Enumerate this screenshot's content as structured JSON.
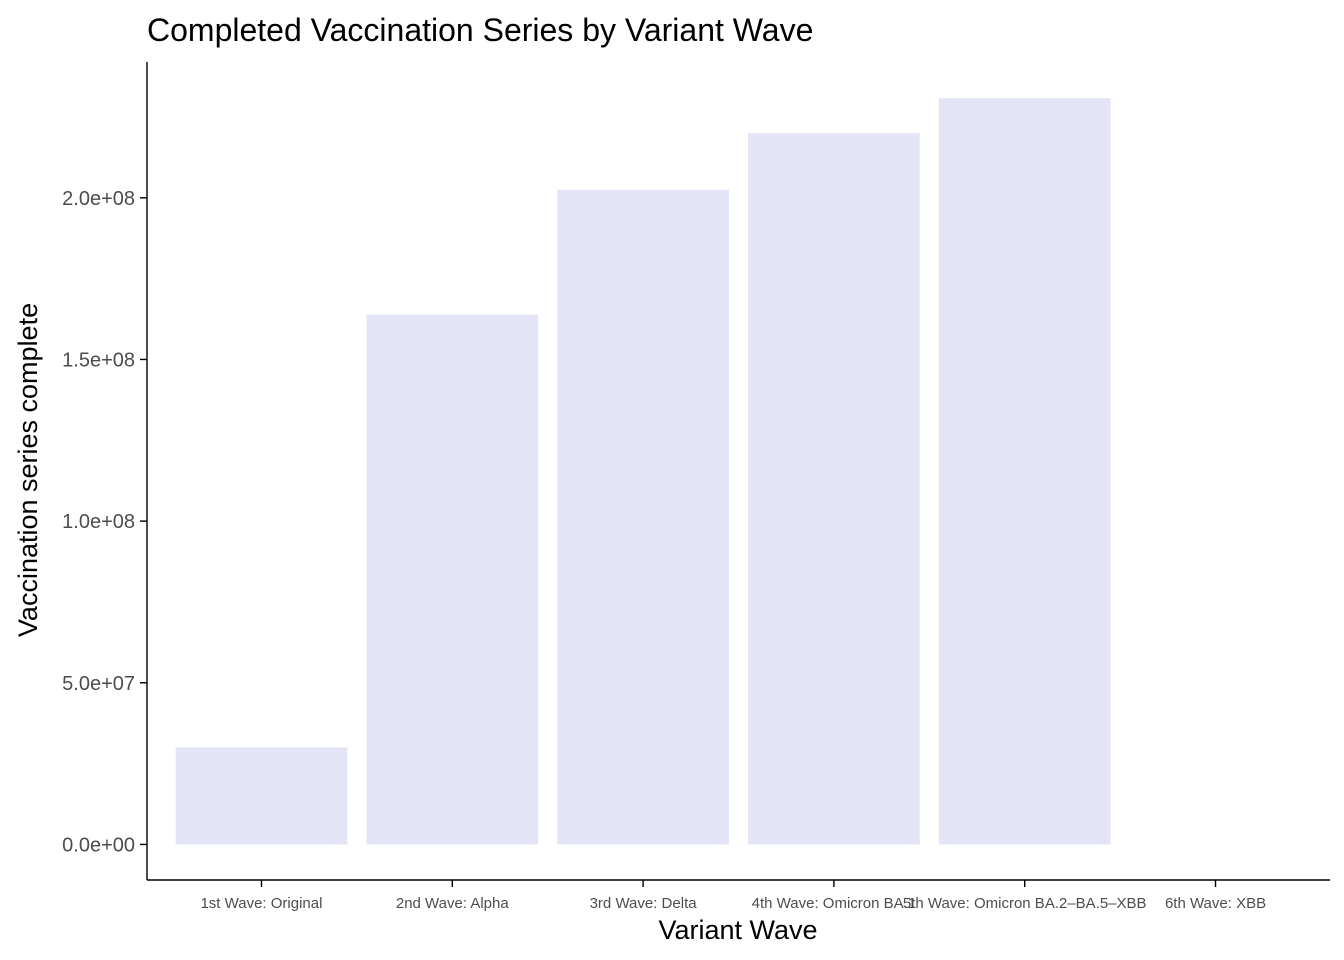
{
  "chart_data": {
    "type": "bar",
    "title": "Completed Vaccination Series by Variant Wave",
    "xlabel": "Variant Wave",
    "ylabel": "Vaccination series complete",
    "categories": [
      "1st Wave: Original",
      "2nd Wave: Alpha",
      "3rd Wave: Delta",
      "4th Wave: Omicron BA.1",
      "5th Wave: Omicron BA.2–BA.5–XBB",
      "6th Wave: XBB"
    ],
    "values": [
      30000000,
      163800000,
      202500000,
      220000000,
      230800000,
      0
    ],
    "ylim": [
      -11000000,
      242000000
    ],
    "yticks": [
      0,
      50000000,
      100000000,
      150000000,
      200000000
    ],
    "ytick_labels": [
      "0.0e+00",
      "5.0e+07",
      "1.0e+08",
      "1.5e+08",
      "2.0e+08"
    ],
    "grid": false,
    "bar_color": "#e4e4f7",
    "axis_color": "#000000",
    "tick_label_color": "#4d4d4d"
  }
}
